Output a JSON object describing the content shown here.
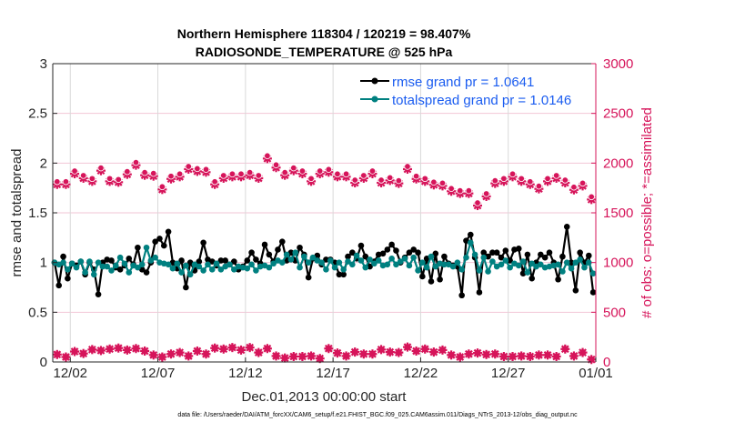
{
  "chart_data": {
    "type": "line",
    "title": [
      "Northern Hemisphere 118304 / 120219 = 98.407%",
      "RADIOSONDE_TEMPERATURE @ 525 hPa"
    ],
    "xlabel": "Dec.01,2013 00:00:00 start",
    "ylabel_left": "rmse and totalspread",
    "ylabel_right": "# of obs: o=possible; *=assimilated",
    "ylim_left": [
      0,
      3
    ],
    "ylim_right": [
      0,
      3000
    ],
    "yticks_left": [
      "0",
      "0.5",
      "1",
      "1.5",
      "2",
      "2.5",
      "3"
    ],
    "yticks_right": [
      "0",
      "500",
      "1000",
      "1500",
      "2000",
      "2500",
      "3000"
    ],
    "xticks": [
      "12/02",
      "12/07",
      "12/12",
      "12/17",
      "12/22",
      "12/27",
      "01/01"
    ],
    "xlim": [
      "2013-12-01",
      "2014-01-01"
    ],
    "grid": true,
    "legend_placement": "top-right",
    "footnote": "data file: /Users/raeder/DAI/ATM_forcXX/CAM6_setup/f.e21.FHIST_BGC.f09_025.CAM6assim.011/Diags_NTrS_2013-12/obs_diag_output.nc",
    "colors": {
      "rmse": "#000000",
      "totalspread": "#008080",
      "obs": "#d6145a",
      "legend_text": "#1a5cf0",
      "grid_h": "#f2c6d6",
      "grid_v": "#d9d9d9"
    },
    "series": [
      {
        "name": "rmse grand pr = 1.0641",
        "axis": "left",
        "values": [
          1.0,
          0.77,
          1.06,
          0.84,
          0.99,
          0.97,
          1.01,
          0.88,
          1.0,
          0.93,
          0.68,
          1.0,
          1.03,
          1.02,
          0.95,
          0.93,
          0.97,
          1.04,
          0.98,
          1.15,
          0.93,
          0.9,
          1.0,
          1.21,
          1.24,
          1.17,
          1.31,
          1.0,
          0.94,
          1.02,
          0.75,
          1.0,
          0.92,
          1.01,
          1.2,
          1.03,
          1.01,
          0.97,
          1.02,
          1.02,
          0.98,
          1.01,
          0.93,
          0.96,
          1.02,
          1.1,
          1.03,
          0.99,
          1.18,
          1.08,
          1.01,
          1.13,
          1.21,
          1.02,
          1.1,
          1.02,
          1.15,
          1.08,
          0.85,
          1.04,
          1.07,
          0.98,
          1.03,
          1.03,
          1.0,
          0.88,
          0.88,
          1.06,
          1.1,
          1.04,
          1.17,
          1.06,
          0.96,
          1.01,
          1.08,
          1.09,
          1.13,
          1.18,
          1.12,
          1.0,
          1.05,
          1.1,
          1.13,
          1.1,
          0.86,
          1.04,
          0.81,
          1.09,
          0.83,
          1.06,
          0.99,
          0.97,
          0.96,
          0.67,
          1.22,
          1.28,
          1.05,
          0.7,
          1.1,
          1.06,
          1.1,
          1.1,
          1.05,
          1.12,
          1.02,
          1.13,
          1.14,
          0.89,
          1.08,
          0.84,
          1.0,
          1.08,
          1.05,
          1.1,
          1.0,
          0.83,
          1.06,
          1.36,
          1.0,
          0.72,
          1.1,
          1.0,
          1.07,
          0.7
        ]
      },
      {
        "name": "totalspread grand pr = 1.0146",
        "axis": "left",
        "values": [
          1.0,
          0.98,
          1.0,
          0.93,
          0.99,
          0.95,
          1.01,
          0.9,
          1.01,
          0.88,
          1.0,
          0.96,
          0.96,
          0.92,
          0.97,
          1.05,
          0.99,
          0.9,
          0.97,
          0.95,
          0.98,
          1.15,
          1.02,
          1.05,
          1.0,
          0.99,
          0.98,
          0.94,
          0.99,
          0.9,
          0.97,
          0.88,
          0.98,
          0.96,
          0.92,
          0.98,
          0.93,
          0.99,
          0.93,
          0.96,
          0.98,
          0.93,
          0.96,
          0.95,
          0.94,
          0.98,
          0.92,
          0.96,
          0.97,
          0.95,
          0.99,
          1.02,
          1.0,
          1.08,
          1.03,
          1.1,
          0.95,
          1.06,
          1.0,
          1.05,
          1.02,
          1.0,
          0.93,
          1.02,
          0.95,
          1.0,
          0.93,
          1.01,
          0.98,
          1.07,
          1.02,
          0.95,
          1.03,
          0.99,
          1.02,
          0.97,
          0.98,
          1.04,
          0.98,
          1.01,
          1.04,
          0.97,
          1.05,
          0.92,
          1.0,
          0.95,
          1.06,
          0.96,
          0.99,
          0.98,
          0.98,
          0.96,
          1.0,
          0.93,
          1.05,
          1.2,
          1.08,
          0.92,
          1.05,
          0.91,
          1.01,
          0.96,
          0.98,
          1.02,
          0.95,
          0.99,
          0.97,
          1.01,
          0.9,
          0.99,
          0.96,
          0.98,
          0.95,
          0.96,
          0.97,
          0.98,
          0.91,
          1.0,
          0.94,
          1.0,
          1.03,
          0.95,
          1.0,
          0.89
        ]
      },
      {
        "name": "possible",
        "axis": "right",
        "values": [
          1795,
          1795,
          1902,
          1857,
          1826,
          1933,
          1826,
          1817,
          1896,
          1988,
          1887,
          1878,
          1744,
          1850,
          1872,
          1948,
          1926,
          1918,
          1795,
          1857,
          1872,
          1872,
          1887,
          1857,
          2055,
          1964,
          1887,
          1933,
          1902,
          1826,
          1902,
          1918,
          1872,
          1872,
          1811,
          1857,
          1902,
          1811,
          1835,
          1805,
          1948,
          1850,
          1826,
          1790,
          1780,
          1726,
          1704,
          1704,
          1582,
          1674,
          1805,
          1826,
          1872,
          1826,
          1795,
          1750,
          1826,
          1857,
          1811,
          1740,
          1780,
          1643
        ]
      },
      {
        "name": "assimilated",
        "axis": "right",
        "values": [
          75,
          50,
          105,
          85,
          125,
          115,
          130,
          140,
          120,
          135,
          110,
          70,
          50,
          80,
          95,
          60,
          110,
          80,
          140,
          130,
          145,
          120,
          145,
          95,
          135,
          60,
          40,
          55,
          55,
          60,
          35,
          135,
          90,
          60,
          100,
          80,
          80,
          125,
          100,
          95,
          150,
          110,
          130,
          100,
          120,
          70,
          50,
          80,
          90,
          75,
          80,
          55,
          55,
          60,
          55,
          70,
          70,
          55,
          130,
          60,
          95,
          25
        ]
      }
    ]
  }
}
